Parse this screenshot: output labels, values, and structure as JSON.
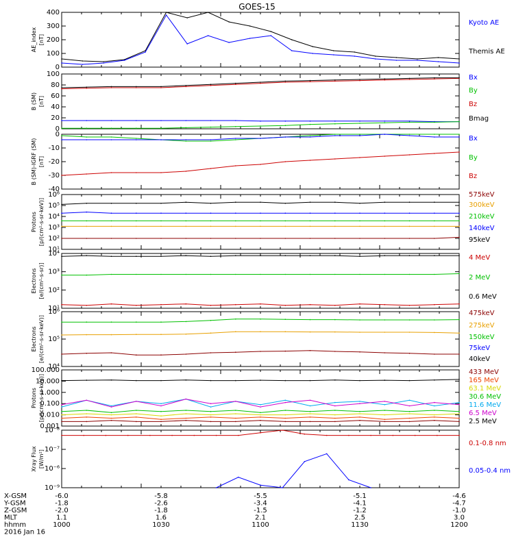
{
  "title": "GOES-15",
  "colors": {
    "black": "#000000",
    "blue": "#0000ff",
    "green": "#00c000",
    "red": "#cc0000",
    "darkred": "#8b0000",
    "orange": "#e8a000",
    "cyan": "#00aaee",
    "magenta": "#cc00cc",
    "lime": "#66ee00",
    "yellow": "#d8d800"
  },
  "panels": [
    {
      "id": "ae",
      "ylabel": [
        "AE_index",
        "[nT]"
      ],
      "scale": "linear",
      "ylim": [
        0,
        400
      ],
      "ticks": [
        "400",
        "300",
        "200",
        "100",
        "0"
      ],
      "legend": [
        {
          "name": "Kyoto AE",
          "color": "#0000ff"
        },
        {
          "name": "Themis AE",
          "color": "#000000"
        }
      ]
    },
    {
      "id": "bsm",
      "ylabel": [
        "B (SM)",
        "[nT]"
      ],
      "scale": "linear",
      "ylim": [
        0,
        100
      ],
      "ticks": [
        "100",
        "80",
        "60",
        "40",
        "20",
        "0"
      ],
      "legend": [
        {
          "name": "Bx",
          "color": "#0000ff"
        },
        {
          "name": "By",
          "color": "#00c000"
        },
        {
          "name": "Bz",
          "color": "#cc0000"
        },
        {
          "name": "Bmag",
          "color": "#000000"
        }
      ]
    },
    {
      "id": "bigrf",
      "ylabel": [
        "B (SM)-IGRF (SM)",
        "[nT]"
      ],
      "scale": "linear",
      "ylim": [
        -40,
        0
      ],
      "ticks": [
        "0",
        "-10",
        "-20",
        "-30",
        "-40"
      ],
      "legend": [
        {
          "name": "Bx",
          "color": "#0000ff"
        },
        {
          "name": "By",
          "color": "#00c000"
        },
        {
          "name": "Bz",
          "color": "#cc0000"
        }
      ]
    },
    {
      "id": "protons_hi",
      "ylabel": [
        "Protons",
        "[p/(cm²-s-sr-keV)]"
      ],
      "scale": "log",
      "ylim": [
        1,
        6
      ],
      "ticks": [
        "10⁶",
        "10⁵",
        "10⁴",
        "10³",
        "10²",
        "10¹"
      ],
      "legend": [
        {
          "name": "575keV",
          "color": "#8b0000"
        },
        {
          "name": "300keV",
          "color": "#e8a000"
        },
        {
          "name": "210keV",
          "color": "#00c000"
        },
        {
          "name": "140keV",
          "color": "#0000ff"
        },
        {
          "name": "95keV",
          "color": "#000000"
        }
      ]
    },
    {
      "id": "electrons_mev",
      "ylabel": [
        "Electrons",
        "[e/(cm²-s-sr)]"
      ],
      "scale": "log",
      "ylim": [
        0.8,
        4.6
      ],
      "ticks": [
        "10⁴",
        "10³",
        "10²",
        "10¹"
      ],
      "legend": [
        {
          "name": "4 MeV",
          "color": "#cc0000"
        },
        {
          "name": "2 MeV",
          "color": "#00c000"
        },
        {
          "name": "0.6 MeV",
          "color": "#000000"
        }
      ]
    },
    {
      "id": "electrons_kev",
      "ylabel": [
        "Electrons",
        "[e/(cm²-s-sr-keV)]"
      ],
      "scale": "log",
      "ylim": [
        4,
        6
      ],
      "ticks": [
        "10⁶",
        "10⁵",
        "10⁴"
      ],
      "legend": [
        {
          "name": "475keV",
          "color": "#8b0000"
        },
        {
          "name": "275keV",
          "color": "#e8a000"
        },
        {
          "name": "150keV",
          "color": "#00c000"
        },
        {
          "name": "75keV",
          "color": "#0000ff"
        },
        {
          "name": "40keV",
          "color": "#000000"
        }
      ]
    },
    {
      "id": "protons_mev",
      "ylabel": [
        "Protons",
        "[p/(cm²-s-sr-keV)]"
      ],
      "scale": "log",
      "ylim": [
        -3,
        2
      ],
      "ticks": [
        "100.000",
        "10.000",
        "1.000",
        "0.100",
        "0.010",
        "0.001"
      ],
      "legend": [
        {
          "name": "433 MeV",
          "color": "#8b0000"
        },
        {
          "name": "165 MeV",
          "color": "#ee4400"
        },
        {
          "name": "63.1 MeV",
          "color": "#d8d800"
        },
        {
          "name": "30.6 MeV",
          "color": "#00c000"
        },
        {
          "name": "11.6 MeV",
          "color": "#00aaee"
        },
        {
          "name": "6.5 MeV",
          "color": "#cc00cc"
        },
        {
          "name": "2.5 MeV",
          "color": "#000000"
        }
      ]
    },
    {
      "id": "xray",
      "ylabel": [
        "Xray Flux",
        "[W/m²]"
      ],
      "scale": "log",
      "ylim": [
        -9,
        -6.8
      ],
      "ticks": [
        "10⁻⁸",
        "10⁻⁷",
        "10⁻⁶",
        "10⁻⁹"
      ],
      "legend": [
        {
          "name": "0.1-0.8 nm",
          "color": "#cc0000"
        },
        {
          "name": "0.05-0.4 nm",
          "color": "#0000ff"
        }
      ]
    }
  ],
  "xaxis": {
    "rows": [
      {
        "label": "X-GSM",
        "values": [
          "-6.0",
          "-5.8",
          "-5.5",
          "-5.1",
          "-4.6"
        ]
      },
      {
        "label": "Y-GSM",
        "values": [
          "-1.8",
          "-2.6",
          "-3.4",
          "-4.1",
          "-4.7"
        ]
      },
      {
        "label": "Z-GSM",
        "values": [
          "-2.0",
          "-1.8",
          "-1.5",
          "-1.2",
          "-1.0"
        ]
      },
      {
        "label": "MLT",
        "values": [
          "1.1",
          "1.6",
          "2.1",
          "2.5",
          "3.0"
        ]
      },
      {
        "label": "hhmm",
        "values": [
          "1000",
          "1030",
          "1100",
          "1130",
          "1200"
        ]
      }
    ],
    "date": "2016 Jan 16"
  },
  "chart_data": {
    "type": "line",
    "title": "GOES-15",
    "x_time_hhmm": [
      "1000",
      "1030",
      "1100",
      "1130",
      "1200"
    ],
    "series": [
      {
        "panel": "ae",
        "name": "Themis AE",
        "values": [
          60,
          45,
          40,
          55,
          120,
          400,
          360,
          400,
          330,
          300,
          260,
          200,
          150,
          120,
          110,
          80,
          70,
          60,
          70,
          60
        ]
      },
      {
        "panel": "ae",
        "name": "Kyoto AE",
        "values": [
          30,
          20,
          30,
          50,
          110,
          380,
          170,
          230,
          180,
          210,
          230,
          120,
          100,
          90,
          80,
          60,
          50,
          50,
          40,
          30
        ]
      },
      {
        "panel": "bsm",
        "name": "Bz",
        "values": [
          73,
          74,
          75,
          75,
          75,
          77,
          79,
          81,
          83,
          85,
          86,
          87,
          88,
          89,
          90,
          91,
          92
        ]
      },
      {
        "panel": "bsm",
        "name": "Bmag",
        "values": [
          75,
          76,
          77,
          77,
          77,
          79,
          81,
          83,
          85,
          87,
          88,
          89,
          90,
          91,
          92,
          93,
          93
        ]
      },
      {
        "panel": "bsm",
        "name": "Bx",
        "values": [
          15,
          15,
          15,
          15,
          15,
          15,
          15,
          15,
          14,
          14,
          14,
          14,
          14,
          14,
          14,
          13,
          13
        ]
      },
      {
        "panel": "bsm",
        "name": "By",
        "values": [
          1,
          1,
          1,
          1,
          1,
          2,
          3,
          4,
          5,
          6,
          8,
          9,
          10,
          11,
          12,
          12,
          13
        ]
      },
      {
        "panel": "bigrf",
        "name": "By",
        "values": [
          -1,
          -2,
          -2,
          -3,
          -4,
          -5,
          -5,
          -4,
          -3,
          -2,
          -1,
          0,
          0,
          0,
          0,
          0,
          0
        ]
      },
      {
        "panel": "bigrf",
        "name": "Bx",
        "values": [
          -4,
          -4,
          -4,
          -4,
          -4,
          -4,
          -4,
          -3,
          -3,
          -2,
          -2,
          -1,
          -1,
          0,
          -1,
          -2,
          -2
        ]
      },
      {
        "panel": "bigrf",
        "name": "Bz",
        "values": [
          -30,
          -29,
          -28,
          -28,
          -28,
          -27,
          -25,
          -23,
          -22,
          -20,
          -19,
          -18,
          -17,
          -16,
          -15,
          -14,
          -13
        ]
      },
      {
        "panel": "protons_hi",
        "name": "95keV",
        "values": [
          5.1,
          5.2,
          5.2,
          5.2,
          5.2,
          5.3,
          5.2,
          5.3,
          5.3,
          5.2,
          5.3,
          5.3,
          5.2,
          5.3,
          5.3,
          5.3,
          5.3
        ]
      },
      {
        "panel": "protons_hi",
        "name": "140keV",
        "values": [
          4.3,
          4.4,
          4.3,
          4.3,
          4.3,
          4.3,
          4.3,
          4.3,
          4.3,
          4.3,
          4.3,
          4.3,
          4.3,
          4.3,
          4.3,
          4.3,
          4.3
        ]
      },
      {
        "panel": "protons_hi",
        "name": "210keV",
        "values": [
          3.6,
          3.6,
          3.6,
          3.6,
          3.6,
          3.6,
          3.6,
          3.6,
          3.6,
          3.6,
          3.6,
          3.6,
          3.6,
          3.6,
          3.6,
          3.6,
          3.6
        ]
      },
      {
        "panel": "protons_hi",
        "name": "300keV",
        "values": [
          3.1,
          3.1,
          3.1,
          3.1,
          3.1,
          3.1,
          3.1,
          3.1,
          3.1,
          3.1,
          3.1,
          3.1,
          3.1,
          3.1,
          3.1,
          3.1,
          3.1
        ]
      },
      {
        "panel": "protons_hi",
        "name": "575keV",
        "values": [
          2.0,
          2.0,
          2.0,
          2.0,
          2.0,
          2.0,
          2.0,
          2.0,
          2.0,
          2.0,
          2.0,
          2.0,
          2.0,
          2.0,
          2.0,
          2.0,
          2.1
        ]
      },
      {
        "panel": "electrons_mev",
        "name": "0.6 MeV",
        "values": [
          4.4,
          4.45,
          4.4,
          4.4,
          4.4,
          4.45,
          4.4,
          4.45,
          4.45,
          4.45,
          4.45,
          4.45,
          4.4,
          4.45,
          4.45,
          4.45,
          4.45
        ]
      },
      {
        "panel": "electrons_mev",
        "name": "2 MeV",
        "values": [
          3.1,
          3.1,
          3.15,
          3.15,
          3.15,
          3.15,
          3.15,
          3.15,
          3.15,
          3.15,
          3.15,
          3.15,
          3.15,
          3.15,
          3.15,
          3.15,
          3.2
        ]
      },
      {
        "panel": "electrons_mev",
        "name": "4 MeV",
        "values": [
          1.05,
          1.0,
          1.1,
          1.0,
          1.05,
          1.1,
          1.0,
          1.05,
          1.1,
          1.0,
          1.05,
          1.0,
          1.1,
          1.05,
          1.0,
          1.05,
          1.1
        ]
      },
      {
        "panel": "electrons_kev",
        "name": "150keV",
        "values": [
          5.62,
          5.62,
          5.62,
          5.62,
          5.62,
          5.64,
          5.68,
          5.73,
          5.73,
          5.72,
          5.71,
          5.71,
          5.7,
          5.7,
          5.7,
          5.7,
          5.71
        ]
      },
      {
        "panel": "electrons_kev",
        "name": "275keV",
        "values": [
          5.15,
          5.16,
          5.16,
          5.17,
          5.17,
          5.18,
          5.22,
          5.27,
          5.27,
          5.27,
          5.26,
          5.26,
          5.25,
          5.25,
          5.25,
          5.24,
          5.22
        ]
      },
      {
        "panel": "electrons_kev",
        "name": "475keV",
        "values": [
          4.45,
          4.48,
          4.5,
          4.42,
          4.42,
          4.45,
          4.5,
          4.52,
          4.55,
          4.56,
          4.58,
          4.55,
          4.53,
          4.5,
          4.48,
          4.45,
          4.45
        ]
      },
      {
        "panel": "protons_mev",
        "name": "2.5 MeV",
        "values": [
          1.05,
          1.08,
          1.1,
          1.05,
          1.05,
          1.1,
          1.05,
          1.05,
          1.08,
          1.05,
          1.05,
          1.1,
          1.05,
          1.08,
          1.05,
          1.1,
          1.15
        ]
      },
      {
        "panel": "protons_mev",
        "name": "11.6 MeV",
        "values": [
          -1.3,
          -0.7,
          -1.2,
          -0.8,
          -1.0,
          -0.6,
          -1.3,
          -0.8,
          -1.1,
          -0.7,
          -1.2,
          -0.9,
          -0.8,
          -1.1,
          -0.7,
          -1.2,
          -0.9
        ]
      },
      {
        "panel": "protons_mev",
        "name": "6.5 MeV",
        "values": [
          -1.1,
          -0.7,
          -1.3,
          -0.8,
          -1.2,
          -0.6,
          -1.0,
          -0.8,
          -1.3,
          -0.9,
          -0.7,
          -1.2,
          -1.0,
          -0.8,
          -1.2,
          -0.9,
          -1.1
        ]
      },
      {
        "panel": "protons_mev",
        "name": "30.6 MeV",
        "values": [
          -1.7,
          -1.6,
          -1.8,
          -1.6,
          -1.7,
          -1.6,
          -1.7,
          -1.6,
          -1.8,
          -1.6,
          -1.7,
          -1.6,
          -1.7,
          -1.6,
          -1.7,
          -1.6,
          -1.7
        ]
      },
      {
        "panel": "protons_mev",
        "name": "63.1 MeV",
        "values": [
          -2.0,
          -1.9,
          -2.0,
          -1.9,
          -2.1,
          -1.9,
          -2.0,
          -1.9,
          -2.0,
          -2.0,
          -1.9,
          -2.0,
          -1.9,
          -2.0,
          -1.9,
          -2.0,
          -1.9
        ]
      },
      {
        "panel": "protons_mev",
        "name": "165 MeV",
        "values": [
          -2.3,
          -2.2,
          -2.3,
          -2.2,
          -2.4,
          -2.3,
          -2.2,
          -2.3,
          -2.2,
          -2.3,
          -2.2,
          -2.3,
          -2.2,
          -2.4,
          -2.3,
          -2.2,
          -2.3
        ]
      },
      {
        "panel": "protons_mev",
        "name": "433 MeV",
        "values": [
          -2.6,
          -2.6,
          -2.5,
          -2.6,
          -2.6,
          -2.5,
          -2.6,
          -2.6,
          -2.5,
          -2.6,
          -2.6,
          -2.6,
          -2.5,
          -2.6,
          -2.6,
          -2.5,
          -2.6
        ]
      },
      {
        "panel": "xray",
        "name": "0.1-0.8 nm",
        "values": [
          -7.0,
          -7.0,
          -7.0,
          -7.0,
          -7.0,
          -7.0,
          -7.0,
          -7.0,
          -7.0,
          -6.9,
          -6.8,
          -6.95,
          -7.0,
          -7.0,
          -7.0,
          -7.0,
          -7.0,
          -7.0,
          -7.0
        ]
      },
      {
        "panel": "xray",
        "name": "0.05-0.4 nm",
        "values": [
          null,
          null,
          null,
          null,
          null,
          null,
          null,
          -9.0,
          -8.6,
          -8.9,
          -9.0,
          -8.0,
          -7.7,
          -8.7,
          -9.0,
          null,
          null,
          null,
          null
        ]
      }
    ]
  }
}
